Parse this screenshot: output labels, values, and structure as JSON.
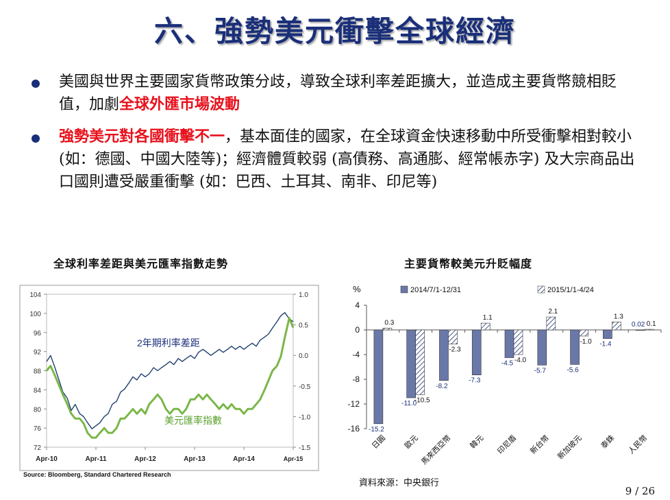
{
  "title": "六、強勢美元衝擊全球經濟",
  "bullets": {
    "b1": {
      "t1": "美國與世界主要國家貨幣政策分歧，導致全球利率差距擴大，並造成主要貨幣競相貶值，加劇",
      "t2": "全球外匯市場波動"
    },
    "b2": {
      "t1": "強勢美元對各國衝擊不一",
      "t2": "，基本面佳的國家，在全球資金快速移動中所受衝擊相對較小 (如：德國、中國大陸等)；經濟體質較弱 (高債務、高通膨、經常帳赤字) 及大宗商品出口國則遭受嚴重衝擊 (如：巴西、土耳其、南非、印尼等)"
    }
  },
  "chart1": {
    "title": "全球利率差距與美元匯率指數走勢",
    "label_spread": "2年期利率差距",
    "label_usd": "美元匯率指數",
    "source": "Source: Bloomberg, Standard Chartered Research"
  },
  "chart2": {
    "title": "主要貨幣較美元升貶幅度",
    "source": "資料來源：中央銀行"
  },
  "colors": {
    "title": "#1a2f7a",
    "accent_red": "#e8101b",
    "line_navy": "#1f3f6e",
    "line_green": "#7ab648",
    "bar_solid": "#6a78a8"
  },
  "chart_data": [
    {
      "type": "line",
      "title": "全球利率差距與美元匯率指數走勢",
      "x_ticks": [
        "Apr-10",
        "Apr-11",
        "Apr-12",
        "Apr-13",
        "Apr-14",
        "Apr-15"
      ],
      "y_left_ticks": [
        104,
        100,
        96,
        92,
        88,
        84,
        80,
        76,
        72
      ],
      "y_left_range": [
        72,
        104
      ],
      "y_right_ticks": [
        "1.0",
        "0.5",
        "0.0",
        "-0.5",
        "-1.0",
        "-1.5"
      ],
      "y_right_range": [
        -1.5,
        1.0
      ],
      "series": [
        {
          "name": "2年期利率差距",
          "axis": "right",
          "points": [
            [
              2010.25,
              -0.1
            ],
            [
              2010.33,
              0.0
            ],
            [
              2010.42,
              -0.2
            ],
            [
              2010.5,
              -0.4
            ],
            [
              2010.58,
              -0.6
            ],
            [
              2010.67,
              -0.7
            ],
            [
              2010.75,
              -0.9
            ],
            [
              2010.83,
              -0.8
            ],
            [
              2010.92,
              -0.95
            ],
            [
              2011.0,
              -1.0
            ],
            [
              2011.08,
              -1.1
            ],
            [
              2011.17,
              -1.2
            ],
            [
              2011.25,
              -1.15
            ],
            [
              2011.33,
              -1.1
            ],
            [
              2011.42,
              -1.0
            ],
            [
              2011.5,
              -0.95
            ],
            [
              2011.58,
              -0.8
            ],
            [
              2011.67,
              -0.75
            ],
            [
              2011.75,
              -0.6
            ],
            [
              2011.83,
              -0.55
            ],
            [
              2011.92,
              -0.45
            ],
            [
              2012.0,
              -0.35
            ],
            [
              2012.08,
              -0.4
            ],
            [
              2012.17,
              -0.3
            ],
            [
              2012.25,
              -0.35
            ],
            [
              2012.33,
              -0.3
            ],
            [
              2012.42,
              -0.2
            ],
            [
              2012.5,
              -0.25
            ],
            [
              2012.58,
              -0.2
            ],
            [
              2012.67,
              -0.15
            ],
            [
              2012.75,
              -0.1
            ],
            [
              2012.83,
              -0.15
            ],
            [
              2012.92,
              -0.05
            ],
            [
              2013.0,
              -0.1
            ],
            [
              2013.08,
              -0.05
            ],
            [
              2013.17,
              0.0
            ],
            [
              2013.25,
              -0.05
            ],
            [
              2013.33,
              0.05
            ],
            [
              2013.42,
              0.1
            ],
            [
              2013.5,
              0.05
            ],
            [
              2013.58,
              0.0
            ],
            [
              2013.67,
              0.05
            ],
            [
              2013.75,
              0.1
            ],
            [
              2013.83,
              0.05
            ],
            [
              2013.92,
              0.1
            ],
            [
              2014.0,
              0.15
            ],
            [
              2014.08,
              0.1
            ],
            [
              2014.17,
              0.15
            ],
            [
              2014.25,
              0.1
            ],
            [
              2014.33,
              0.15
            ],
            [
              2014.42,
              0.2
            ],
            [
              2014.5,
              0.15
            ],
            [
              2014.58,
              0.25
            ],
            [
              2014.67,
              0.3
            ],
            [
              2014.75,
              0.35
            ],
            [
              2014.83,
              0.45
            ],
            [
              2014.92,
              0.55
            ],
            [
              2015.0,
              0.65
            ],
            [
              2015.08,
              0.7
            ],
            [
              2015.17,
              0.6
            ],
            [
              2015.25,
              0.55
            ]
          ]
        },
        {
          "name": "美元匯率指數",
          "axis": "left",
          "points": [
            [
              2010.25,
              88
            ],
            [
              2010.33,
              89
            ],
            [
              2010.42,
              87
            ],
            [
              2010.5,
              85
            ],
            [
              2010.58,
              83
            ],
            [
              2010.67,
              81
            ],
            [
              2010.75,
              79
            ],
            [
              2010.83,
              78
            ],
            [
              2010.92,
              78
            ],
            [
              2011.0,
              77
            ],
            [
              2011.08,
              75
            ],
            [
              2011.17,
              74
            ],
            [
              2011.25,
              74
            ],
            [
              2011.33,
              75
            ],
            [
              2011.42,
              76
            ],
            [
              2011.5,
              75
            ],
            [
              2011.58,
              75
            ],
            [
              2011.67,
              76
            ],
            [
              2011.75,
              78
            ],
            [
              2011.83,
              78
            ],
            [
              2011.92,
              79
            ],
            [
              2012.0,
              80
            ],
            [
              2012.08,
              79
            ],
            [
              2012.17,
              80
            ],
            [
              2012.25,
              79
            ],
            [
              2012.33,
              81
            ],
            [
              2012.42,
              82
            ],
            [
              2012.5,
              83
            ],
            [
              2012.58,
              82
            ],
            [
              2012.67,
              80
            ],
            [
              2012.75,
              79
            ],
            [
              2012.83,
              80
            ],
            [
              2012.92,
              80
            ],
            [
              2013.0,
              79
            ],
            [
              2013.08,
              80
            ],
            [
              2013.17,
              82
            ],
            [
              2013.25,
              82
            ],
            [
              2013.33,
              83
            ],
            [
              2013.42,
              82
            ],
            [
              2013.5,
              83
            ],
            [
              2013.58,
              82
            ],
            [
              2013.67,
              81
            ],
            [
              2013.75,
              80
            ],
            [
              2013.83,
              81
            ],
            [
              2013.92,
              80
            ],
            [
              2014.0,
              81
            ],
            [
              2014.08,
              80
            ],
            [
              2014.17,
              80
            ],
            [
              2014.25,
              79
            ],
            [
              2014.33,
              80
            ],
            [
              2014.42,
              80
            ],
            [
              2014.5,
              81
            ],
            [
              2014.58,
              82
            ],
            [
              2014.67,
              84
            ],
            [
              2014.75,
              86
            ],
            [
              2014.83,
              88
            ],
            [
              2014.92,
              89
            ],
            [
              2015.0,
              91
            ],
            [
              2015.08,
              95
            ],
            [
              2015.17,
              99
            ],
            [
              2015.25,
              97
            ]
          ]
        }
      ],
      "source": "Source: Bloomberg, Standard Chartered Research"
    },
    {
      "type": "bar",
      "title": "主要貨幣較美元升貶幅度",
      "ylabel": "%",
      "y_ticks": [
        4,
        0,
        -4,
        -8,
        -12,
        -16
      ],
      "ylim": [
        -16,
        4
      ],
      "categories": [
        "日圓",
        "歐元",
        "馬來西亞幣",
        "韓元",
        "印尼盾",
        "新台幣",
        "新加坡元",
        "泰銖",
        "人民幣"
      ],
      "series": [
        {
          "name": "2014/7/1-12/31",
          "values": [
            -15.2,
            -11.0,
            -8.2,
            -7.3,
            -4.5,
            -5.7,
            -5.6,
            -1.4,
            0.02
          ]
        },
        {
          "name": "2015/1/1-4/24",
          "values": [
            0.3,
            -10.5,
            -2.3,
            1.1,
            -4.0,
            2.1,
            -1.0,
            1.3,
            0.1
          ]
        }
      ],
      "value_labels": {
        "s1": [
          "-15.2",
          "-11.0",
          "-8.2",
          "-7.3",
          "-4.5",
          "-5.7",
          "-5.6",
          "-1.4",
          "0.02"
        ],
        "s2": [
          "0.3",
          "-10.5",
          "-2.3",
          "1.1",
          "-4.0",
          "2.1",
          "-1.0",
          "1.3",
          "0.1"
        ]
      },
      "source": "資料來源：中央銀行"
    }
  ],
  "page_number": "9 / 26"
}
